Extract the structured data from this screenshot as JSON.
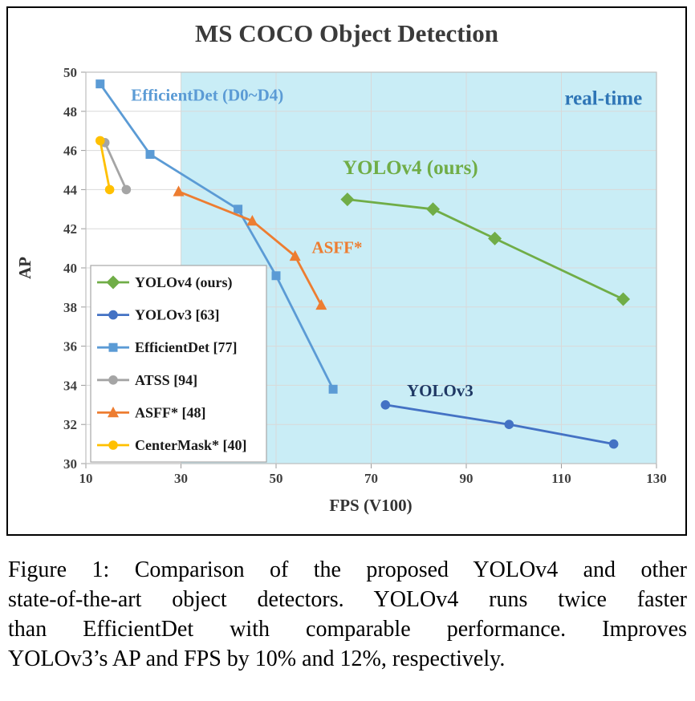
{
  "chart_data": {
    "type": "line",
    "title": "MS COCO Object Detection",
    "xlabel": "FPS (V100)",
    "ylabel": "AP",
    "xlim": [
      10,
      130
    ],
    "ylim": [
      30,
      50
    ],
    "xticks": [
      10,
      30,
      50,
      70,
      90,
      110,
      130
    ],
    "yticks": [
      30,
      32,
      34,
      36,
      38,
      40,
      42,
      44,
      46,
      48,
      50
    ],
    "grid": true,
    "legend_position": "lower-left",
    "realtime_region": {
      "x_start": 30,
      "x_end": 130,
      "fill": "#c9edf6",
      "label": "real-time",
      "label_color": "#2e75b6"
    },
    "series": [
      {
        "name": "YOLOv4 (ours)",
        "color": "#70ad47",
        "marker": "diamond",
        "points": [
          [
            65,
            43.5
          ],
          [
            83,
            43.0
          ],
          [
            96,
            41.5
          ],
          [
            123,
            38.4
          ]
        ]
      },
      {
        "name": "YOLOv3 [63]",
        "color": "#4472c4",
        "marker": "circle",
        "points": [
          [
            73,
            33.0
          ],
          [
            99,
            32.0
          ],
          [
            121,
            31.0
          ]
        ]
      },
      {
        "name": "EfficientDet [77]",
        "color": "#5b9bd5",
        "marker": "square",
        "points": [
          [
            13,
            49.4
          ],
          [
            23.5,
            45.8
          ],
          [
            42,
            43.0
          ],
          [
            50,
            39.6
          ],
          [
            62,
            33.8
          ]
        ]
      },
      {
        "name": "ATSS [94]",
        "color": "#a5a5a5",
        "marker": "circle",
        "points": [
          [
            14,
            46.4
          ],
          [
            18.5,
            44.0
          ]
        ]
      },
      {
        "name": "ASFF* [48]",
        "color": "#ed7d31",
        "marker": "triangle",
        "points": [
          [
            29.5,
            43.9
          ],
          [
            45,
            42.4
          ],
          [
            54,
            40.6
          ],
          [
            59.5,
            38.1
          ]
        ]
      },
      {
        "name": "CenterMask* [40]",
        "color": "#ffc000",
        "marker": "circle",
        "points": [
          [
            13,
            46.5
          ],
          [
            15,
            44.0
          ]
        ]
      }
    ],
    "annotations": [
      {
        "text": "EfficientDet (D0~D4)",
        "x": 19.5,
        "y": 48.55,
        "color": "#5b9bd5",
        "size": 21,
        "anchor": "start"
      },
      {
        "text": "real-time",
        "x": 127,
        "y": 48.35,
        "color": "#2e75b6",
        "size": 25,
        "anchor": "end"
      },
      {
        "text": "YOLOv4 (ours)",
        "x": 64,
        "y": 44.8,
        "color": "#70ad47",
        "size": 25,
        "anchor": "start"
      },
      {
        "text": "ASFF*",
        "x": 57.5,
        "y": 40.75,
        "color": "#ed7d31",
        "size": 21,
        "anchor": "start"
      },
      {
        "text": "YOLOv3",
        "x": 77.5,
        "y": 33.45,
        "color": "#1f3864",
        "size": 21,
        "anchor": "start"
      }
    ]
  },
  "caption": {
    "lines": [
      "Figure 1: Comparison of the proposed YOLOv4 and other",
      "state-of-the-art object detectors. YOLOv4 runs twice faster",
      "than EfficientDet with comparable performance. Improves",
      "YOLOv3’s AP and FPS by 10% and 12%, respectively."
    ]
  }
}
